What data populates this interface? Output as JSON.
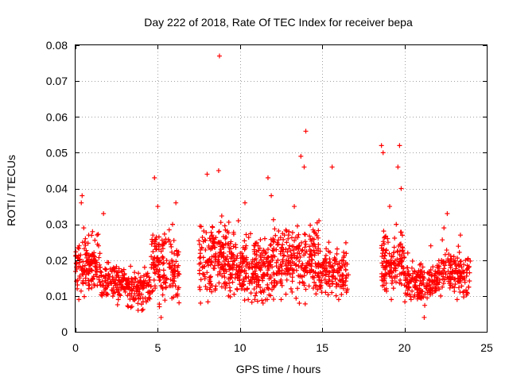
{
  "chart_data": {
    "type": "scatter",
    "title": "Day 222 of 2018, Rate Of TEC Index for receiver bepa",
    "xlabel": "GPS time / hours",
    "ylabel": "ROTI / TECUs",
    "xlim": [
      0,
      25
    ],
    "ylim": [
      0,
      0.08
    ],
    "x_ticks": [
      0,
      5,
      10,
      15,
      20,
      25
    ],
    "x_tick_labels": [
      "0",
      "5",
      "10",
      "15",
      "20",
      "25"
    ],
    "y_ticks": [
      0,
      0.01,
      0.02,
      0.03,
      0.04,
      0.05,
      0.06,
      0.07,
      0.08
    ],
    "y_tick_labels": [
      "0",
      "0.01",
      "0.02",
      "0.03",
      "0.04",
      "0.05",
      "0.06",
      "0.07",
      "0.08"
    ],
    "grid": true,
    "marker": "+",
    "color": "#ff0000",
    "series": [
      {
        "name": "ROTI",
        "points": [
          [
            0.1,
            0.012
          ],
          [
            0.2,
            0.009
          ],
          [
            0.3,
            0.018
          ],
          [
            0.35,
            0.036
          ],
          [
            0.4,
            0.038
          ],
          [
            0.5,
            0.029
          ],
          [
            0.6,
            0.026
          ],
          [
            0.7,
            0.022
          ],
          [
            0.8,
            0.027
          ],
          [
            1.0,
            0.021
          ],
          [
            1.2,
            0.019
          ],
          [
            1.4,
            0.024
          ],
          [
            1.5,
            0.018
          ],
          [
            1.7,
            0.033
          ],
          [
            1.8,
            0.015
          ],
          [
            2.0,
            0.013
          ],
          [
            2.2,
            0.017
          ],
          [
            2.4,
            0.011
          ],
          [
            2.6,
            0.009
          ],
          [
            2.8,
            0.014
          ],
          [
            3.0,
            0.012
          ],
          [
            3.2,
            0.007
          ],
          [
            3.4,
            0.01
          ],
          [
            3.6,
            0.015
          ],
          [
            3.8,
            0.006
          ],
          [
            4.0,
            0.013
          ],
          [
            4.2,
            0.018
          ],
          [
            4.4,
            0.011
          ],
          [
            4.6,
            0.021
          ],
          [
            4.7,
            0.027
          ],
          [
            4.8,
            0.043
          ],
          [
            5.0,
            0.035
          ],
          [
            5.1,
            0.007
          ],
          [
            5.2,
            0.004
          ],
          [
            5.3,
            0.012
          ],
          [
            5.5,
            0.025
          ],
          [
            5.7,
            0.018
          ],
          [
            5.9,
            0.03
          ],
          [
            6.0,
            0.015
          ],
          [
            6.1,
            0.036
          ],
          [
            6.2,
            0.01
          ],
          [
            7.6,
            0.008
          ],
          [
            7.8,
            0.016
          ],
          [
            8.0,
            0.044
          ],
          [
            8.1,
            0.02
          ],
          [
            8.3,
            0.027
          ],
          [
            8.5,
            0.012
          ],
          [
            8.7,
            0.045
          ],
          [
            8.75,
            0.077
          ],
          [
            8.9,
            0.018
          ],
          [
            9.1,
            0.026
          ],
          [
            9.3,
            0.01
          ],
          [
            9.5,
            0.022
          ],
          [
            9.7,
            0.015
          ],
          [
            9.9,
            0.031
          ],
          [
            10.1,
            0.012
          ],
          [
            10.3,
            0.036
          ],
          [
            10.5,
            0.009
          ],
          [
            10.7,
            0.019
          ],
          [
            10.9,
            0.014
          ],
          [
            11.1,
            0.024
          ],
          [
            11.3,
            0.011
          ],
          [
            11.5,
            0.016
          ],
          [
            11.7,
            0.043
          ],
          [
            11.9,
            0.038
          ],
          [
            12.1,
            0.013
          ],
          [
            12.3,
            0.02
          ],
          [
            12.5,
            0.009
          ],
          [
            12.7,
            0.027
          ],
          [
            12.9,
            0.017
          ],
          [
            13.1,
            0.012
          ],
          [
            13.3,
            0.035
          ],
          [
            13.5,
            0.022
          ],
          [
            13.7,
            0.049
          ],
          [
            13.9,
            0.046
          ],
          [
            14.0,
            0.056
          ],
          [
            14.2,
            0.019
          ],
          [
            14.4,
            0.026
          ],
          [
            14.6,
            0.013
          ],
          [
            14.8,
            0.031
          ],
          [
            15.0,
            0.018
          ],
          [
            15.2,
            0.011
          ],
          [
            15.4,
            0.025
          ],
          [
            15.6,
            0.046
          ],
          [
            15.8,
            0.015
          ],
          [
            16.0,
            0.009
          ],
          [
            16.2,
            0.02
          ],
          [
            16.4,
            0.013
          ],
          [
            18.6,
            0.052
          ],
          [
            18.7,
            0.05
          ],
          [
            18.8,
            0.018
          ],
          [
            18.9,
            0.012
          ],
          [
            19.0,
            0.025
          ],
          [
            19.1,
            0.035
          ],
          [
            19.2,
            0.009
          ],
          [
            19.3,
            0.021
          ],
          [
            19.4,
            0.015
          ],
          [
            19.5,
            0.03
          ],
          [
            19.6,
            0.046
          ],
          [
            19.7,
            0.052
          ],
          [
            19.8,
            0.04
          ],
          [
            20.0,
            0.013
          ],
          [
            20.2,
            0.022
          ],
          [
            20.4,
            0.009
          ],
          [
            20.6,
            0.017
          ],
          [
            20.8,
            0.012
          ],
          [
            21.0,
            0.019
          ],
          [
            21.2,
            0.004
          ],
          [
            21.4,
            0.011
          ],
          [
            21.6,
            0.024
          ],
          [
            21.8,
            0.014
          ],
          [
            22.0,
            0.018
          ],
          [
            22.2,
            0.01
          ],
          [
            22.4,
            0.029
          ],
          [
            22.6,
            0.033
          ],
          [
            22.8,
            0.013
          ],
          [
            23.0,
            0.021
          ],
          [
            23.2,
            0.009
          ],
          [
            23.4,
            0.027
          ],
          [
            23.6,
            0.015
          ],
          [
            23.8,
            0.011
          ],
          [
            23.9,
            0.018
          ]
        ],
        "bands": [
          {
            "x": [
              0.0,
              1.5
            ],
            "lo": 0.008,
            "hi": 0.029,
            "n": 130
          },
          {
            "x": [
              1.5,
              3.0
            ],
            "lo": 0.007,
            "hi": 0.021,
            "n": 110
          },
          {
            "x": [
              3.0,
              4.6
            ],
            "lo": 0.005,
            "hi": 0.019,
            "n": 110
          },
          {
            "x": [
              4.6,
              6.3
            ],
            "lo": 0.005,
            "hi": 0.032,
            "n": 150
          },
          {
            "x": [
              7.5,
              9.5
            ],
            "lo": 0.006,
            "hi": 0.035,
            "n": 190
          },
          {
            "x": [
              9.5,
              12.0
            ],
            "lo": 0.006,
            "hi": 0.03,
            "n": 230
          },
          {
            "x": [
              12.0,
              14.8
            ],
            "lo": 0.007,
            "hi": 0.033,
            "n": 250
          },
          {
            "x": [
              14.8,
              16.6
            ],
            "lo": 0.007,
            "hi": 0.026,
            "n": 130
          },
          {
            "x": [
              18.6,
              20.0
            ],
            "lo": 0.008,
            "hi": 0.03,
            "n": 130
          },
          {
            "x": [
              20.0,
              22.0
            ],
            "lo": 0.006,
            "hi": 0.022,
            "n": 160
          },
          {
            "x": [
              22.0,
              24.0
            ],
            "lo": 0.007,
            "hi": 0.026,
            "n": 150
          }
        ]
      }
    ]
  }
}
